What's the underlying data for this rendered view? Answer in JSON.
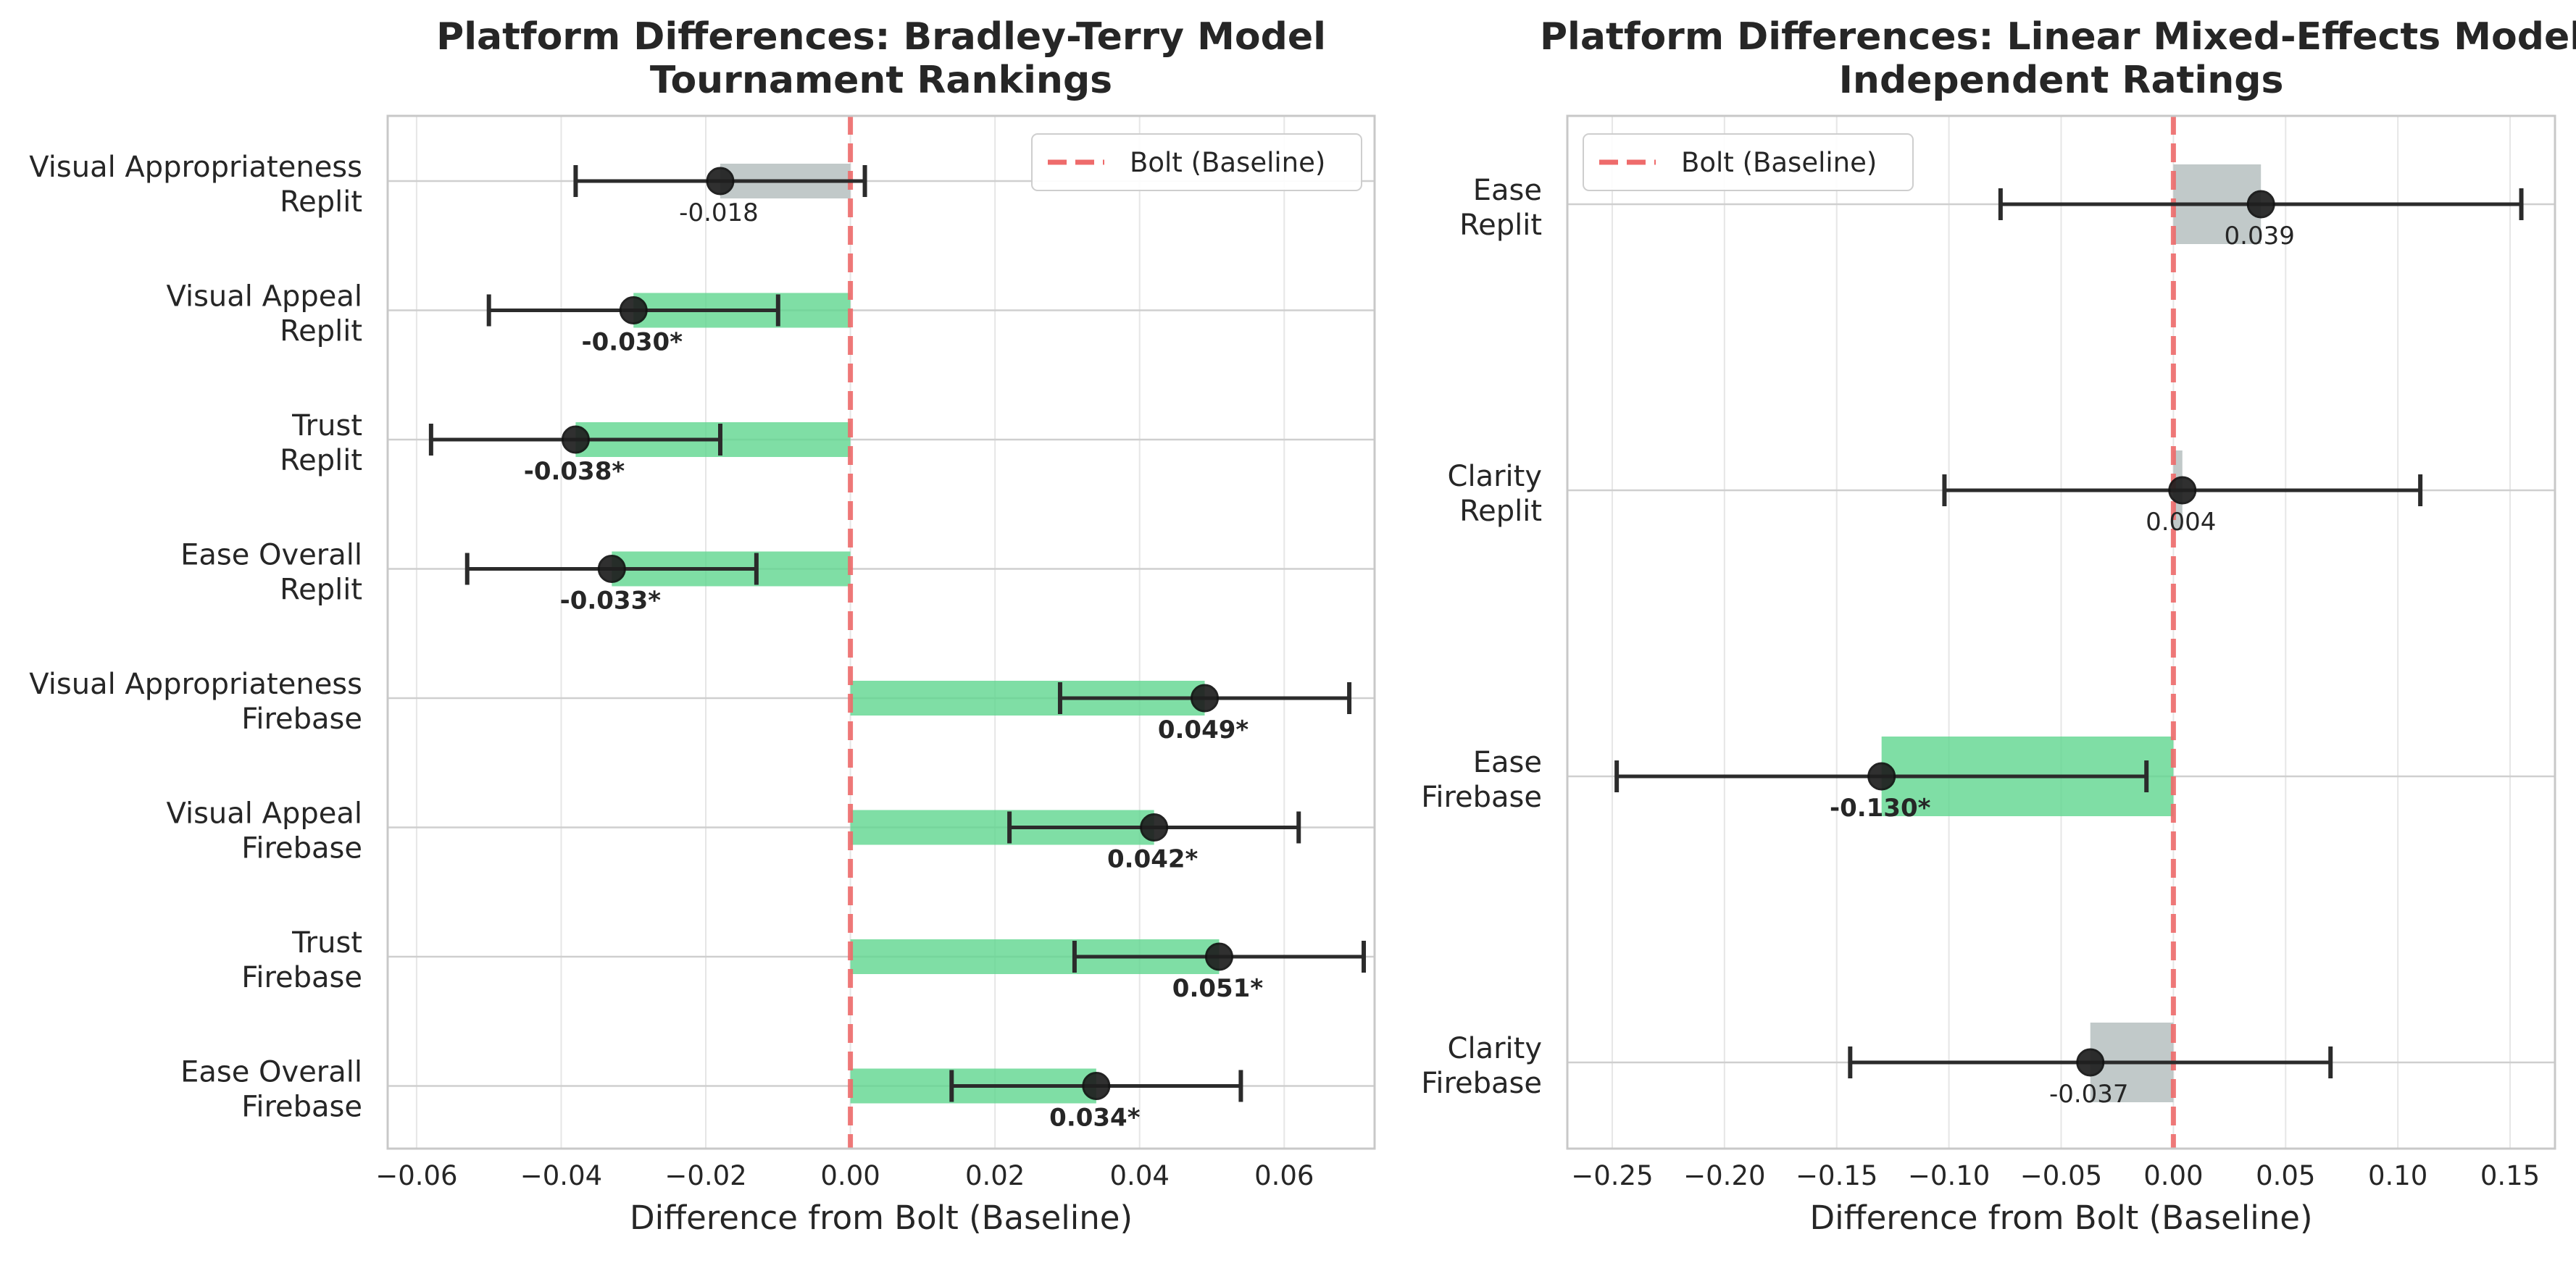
{
  "colors": {
    "significant": "#5fd68e",
    "nonsignificant": "#b1bcbb",
    "baseline": "#ee6b6b",
    "point": "#1f1f1f",
    "errorbar": "#2b2b2b",
    "grid": "#e6e6e6",
    "frame": "#c8c8c8",
    "text": "#262626"
  },
  "chart_data": [
    {
      "type": "bar",
      "orientation": "horizontal",
      "title": "Platform Differences: Bradley-Terry Model\nTournament Rankings",
      "xlabel": "Difference from Bolt (Baseline)",
      "xlim": [
        -0.064,
        0.0725
      ],
      "xticks": [
        -0.06,
        -0.04,
        -0.02,
        0.0,
        0.02,
        0.04,
        0.06
      ],
      "xtick_labels": [
        "−0.06",
        "−0.04",
        "−0.02",
        "0.00",
        "0.02",
        "0.04",
        "0.06"
      ],
      "grid": true,
      "legend": {
        "position": "top-right",
        "entries": [
          "Bolt (Baseline)"
        ]
      },
      "baseline_value": 0,
      "items": [
        {
          "category": "Visual Appropriateness\nReplit",
          "value": -0.018,
          "ci_low": -0.038,
          "ci_high": 0.002,
          "significant": false,
          "label": "-0.018"
        },
        {
          "category": "Visual Appeal\nReplit",
          "value": -0.03,
          "ci_low": -0.05,
          "ci_high": -0.01,
          "significant": true,
          "label": "-0.030*"
        },
        {
          "category": "Trust\nReplit",
          "value": -0.038,
          "ci_low": -0.058,
          "ci_high": -0.018,
          "significant": true,
          "label": "-0.038*"
        },
        {
          "category": "Ease Overall\nReplit",
          "value": -0.033,
          "ci_low": -0.053,
          "ci_high": -0.013,
          "significant": true,
          "label": "-0.033*"
        },
        {
          "category": "Visual Appropriateness\nFirebase",
          "value": 0.049,
          "ci_low": 0.029,
          "ci_high": 0.069,
          "significant": true,
          "label": "0.049*"
        },
        {
          "category": "Visual Appeal\nFirebase",
          "value": 0.042,
          "ci_low": 0.022,
          "ci_high": 0.062,
          "significant": true,
          "label": "0.042*"
        },
        {
          "category": "Trust\nFirebase",
          "value": 0.051,
          "ci_low": 0.031,
          "ci_high": 0.071,
          "significant": true,
          "label": "0.051*"
        },
        {
          "category": "Ease Overall\nFirebase",
          "value": 0.034,
          "ci_low": 0.014,
          "ci_high": 0.054,
          "significant": true,
          "label": "0.034*"
        }
      ]
    },
    {
      "type": "bar",
      "orientation": "horizontal",
      "title": "Platform Differences: Linear Mixed-Effects Model\nIndependent Ratings",
      "xlabel": "Difference from Bolt (Baseline)",
      "xlim": [
        -0.27,
        0.17
      ],
      "xticks": [
        -0.25,
        -0.2,
        -0.15,
        -0.1,
        -0.05,
        0.0,
        0.05,
        0.1,
        0.15
      ],
      "xtick_labels": [
        "−0.25",
        "−0.20",
        "−0.15",
        "−0.10",
        "−0.05",
        "0.00",
        "0.05",
        "0.10",
        "0.15"
      ],
      "grid": true,
      "legend": {
        "position": "top-left",
        "entries": [
          "Bolt (Baseline)"
        ]
      },
      "baseline_value": 0,
      "items": [
        {
          "category": "Ease\nReplit",
          "value": 0.039,
          "ci_low": -0.077,
          "ci_high": 0.155,
          "significant": false,
          "label": "0.039"
        },
        {
          "category": "Clarity\nReplit",
          "value": 0.004,
          "ci_low": -0.102,
          "ci_high": 0.11,
          "significant": false,
          "label": "0.004"
        },
        {
          "category": "Ease\nFirebase",
          "value": -0.13,
          "ci_low": -0.248,
          "ci_high": -0.012,
          "significant": true,
          "label": "-0.130*"
        },
        {
          "category": "Clarity\nFirebase",
          "value": -0.037,
          "ci_low": -0.144,
          "ci_high": 0.07,
          "significant": false,
          "label": "-0.037"
        }
      ]
    }
  ]
}
